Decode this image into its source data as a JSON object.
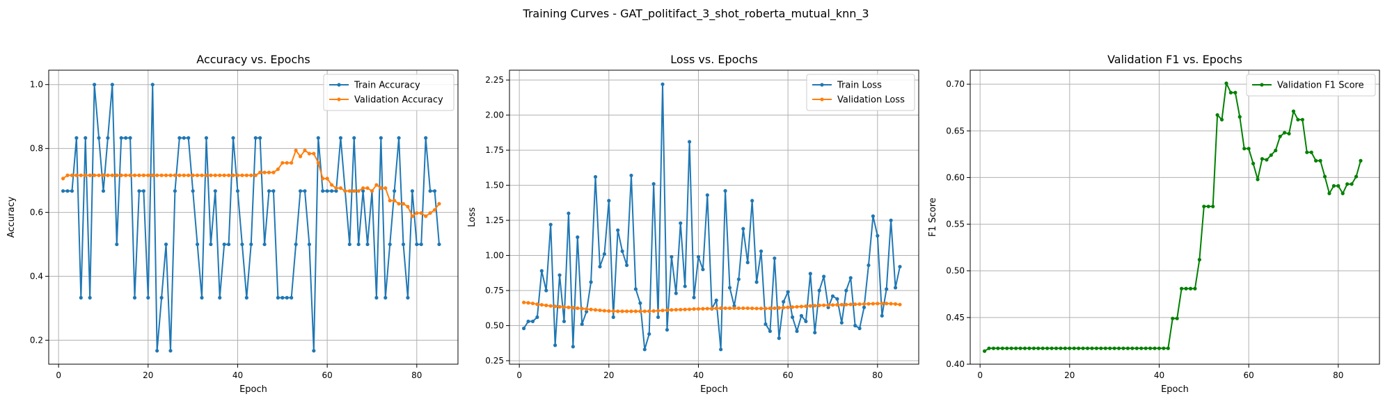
{
  "figure": {
    "title": "Training Curves - GAT_politifact_3_shot_roberta_mutual_knn_3"
  },
  "colors": {
    "blue": "#1f77b4",
    "orange": "#ff7f0e",
    "green": "#008000"
  },
  "chart_data": [
    {
      "type": "line",
      "title": "Accuracy vs. Epochs",
      "xlabel": "Epoch",
      "ylabel": "Accuracy",
      "xlim": [
        -2.2,
        89.2
      ],
      "ylim": [
        0.125,
        1.045
      ],
      "xticks": [
        0,
        20,
        40,
        60,
        80
      ],
      "yticks": [
        0.2,
        0.4,
        0.6,
        0.8,
        1.0
      ],
      "grid": true,
      "legend": "top-right",
      "series": [
        {
          "name": "Train Accuracy",
          "color": "blue",
          "x": [
            1,
            2,
            3,
            4,
            5,
            6,
            7,
            8,
            9,
            10,
            11,
            12,
            13,
            14,
            15,
            16,
            17,
            18,
            19,
            20,
            21,
            22,
            23,
            24,
            25,
            26,
            27,
            28,
            29,
            30,
            31,
            32,
            33,
            34,
            35,
            36,
            37,
            38,
            39,
            40,
            41,
            42,
            43,
            44,
            45,
            46,
            47,
            48,
            49,
            50,
            51,
            52,
            53,
            54,
            55,
            56,
            57,
            58,
            59,
            60,
            61,
            62,
            63,
            64,
            65,
            66,
            67,
            68,
            69,
            70,
            71,
            72,
            73,
            74,
            75,
            76,
            77,
            78,
            79,
            80,
            81,
            82,
            83,
            84,
            85
          ],
          "y": [
            0.667,
            0.667,
            0.667,
            0.833,
            0.333,
            0.833,
            0.333,
            1.0,
            0.833,
            0.667,
            0.833,
            1.0,
            0.5,
            0.833,
            0.833,
            0.833,
            0.333,
            0.667,
            0.667,
            0.333,
            1.0,
            0.167,
            0.333,
            0.5,
            0.167,
            0.667,
            0.833,
            0.833,
            0.833,
            0.667,
            0.5,
            0.333,
            0.833,
            0.5,
            0.667,
            0.333,
            0.5,
            0.5,
            0.833,
            0.667,
            0.5,
            0.333,
            0.5,
            0.833,
            0.833,
            0.5,
            0.667,
            0.667,
            0.333,
            0.333,
            0.333,
            0.333,
            0.5,
            0.667,
            0.667,
            0.5,
            0.167,
            0.833,
            0.667,
            0.667,
            0.667,
            0.667,
            0.833,
            0.667,
            0.5,
            0.833,
            0.5,
            0.667,
            0.5,
            0.667,
            0.333,
            0.833,
            0.333,
            0.5,
            0.667,
            0.833,
            0.5,
            0.333,
            0.667,
            0.5,
            0.5,
            0.833,
            0.667,
            0.667,
            0.5
          ]
        },
        {
          "name": "Validation Accuracy",
          "color": "orange",
          "x": [
            1,
            2,
            3,
            4,
            5,
            6,
            7,
            8,
            9,
            10,
            11,
            12,
            13,
            14,
            15,
            16,
            17,
            18,
            19,
            20,
            21,
            22,
            23,
            24,
            25,
            26,
            27,
            28,
            29,
            30,
            31,
            32,
            33,
            34,
            35,
            36,
            37,
            38,
            39,
            40,
            41,
            42,
            43,
            44,
            45,
            46,
            47,
            48,
            49,
            50,
            51,
            52,
            53,
            54,
            55,
            56,
            57,
            58,
            59,
            60,
            61,
            62,
            63,
            64,
            65,
            66,
            67,
            68,
            69,
            70,
            71,
            72,
            73,
            74,
            75,
            76,
            77,
            78,
            79,
            80,
            81,
            82,
            83,
            84,
            85
          ],
          "y": [
            0.706,
            0.716,
            0.716,
            0.716,
            0.716,
            0.716,
            0.716,
            0.716,
            0.716,
            0.716,
            0.716,
            0.716,
            0.716,
            0.716,
            0.716,
            0.716,
            0.716,
            0.716,
            0.716,
            0.716,
            0.716,
            0.716,
            0.716,
            0.716,
            0.716,
            0.716,
            0.716,
            0.716,
            0.716,
            0.716,
            0.716,
            0.716,
            0.716,
            0.716,
            0.716,
            0.716,
            0.716,
            0.716,
            0.716,
            0.716,
            0.716,
            0.716,
            0.716,
            0.716,
            0.725,
            0.725,
            0.725,
            0.725,
            0.735,
            0.755,
            0.755,
            0.755,
            0.794,
            0.775,
            0.794,
            0.784,
            0.784,
            0.755,
            0.706,
            0.706,
            0.686,
            0.676,
            0.676,
            0.667,
            0.667,
            0.667,
            0.667,
            0.676,
            0.676,
            0.667,
            0.686,
            0.676,
            0.676,
            0.637,
            0.637,
            0.627,
            0.627,
            0.618,
            0.588,
            0.598,
            0.598,
            0.588,
            0.598,
            0.608,
            0.627
          ]
        }
      ]
    },
    {
      "type": "line",
      "title": "Loss vs. Epochs",
      "xlabel": "Epoch",
      "ylabel": "Loss",
      "xlim": [
        -2.2,
        89.2
      ],
      "ylim": [
        0.225,
        2.32
      ],
      "xticks": [
        0,
        20,
        40,
        60,
        80
      ],
      "yticks": [
        0.25,
        0.5,
        0.75,
        1.0,
        1.25,
        1.5,
        1.75,
        2.0,
        2.25
      ],
      "grid": true,
      "legend": "top-right",
      "series": [
        {
          "name": "Train Loss",
          "color": "blue",
          "x": [
            1,
            2,
            3,
            4,
            5,
            6,
            7,
            8,
            9,
            10,
            11,
            12,
            13,
            14,
            15,
            16,
            17,
            18,
            19,
            20,
            21,
            22,
            23,
            24,
            25,
            26,
            27,
            28,
            29,
            30,
            31,
            32,
            33,
            34,
            35,
            36,
            37,
            38,
            39,
            40,
            41,
            42,
            43,
            44,
            45,
            46,
            47,
            48,
            49,
            50,
            51,
            52,
            53,
            54,
            55,
            56,
            57,
            58,
            59,
            60,
            61,
            62,
            63,
            64,
            65,
            66,
            67,
            68,
            69,
            70,
            71,
            72,
            73,
            74,
            75,
            76,
            77,
            78,
            79,
            80,
            81,
            82,
            83,
            84,
            85
          ],
          "y": [
            0.48,
            0.53,
            0.53,
            0.56,
            0.89,
            0.75,
            1.22,
            0.36,
            0.86,
            0.53,
            1.3,
            0.35,
            1.13,
            0.51,
            0.6,
            0.81,
            1.56,
            0.92,
            1.01,
            1.39,
            0.56,
            1.18,
            1.03,
            0.93,
            1.57,
            0.76,
            0.66,
            0.33,
            0.44,
            1.51,
            0.56,
            2.22,
            0.47,
            0.99,
            0.73,
            1.23,
            0.78,
            1.81,
            0.7,
            0.99,
            0.9,
            1.43,
            0.62,
            0.68,
            0.33,
            1.46,
            0.77,
            0.64,
            0.83,
            1.19,
            0.95,
            1.39,
            0.81,
            1.03,
            0.51,
            0.46,
            0.98,
            0.41,
            0.67,
            0.74,
            0.56,
            0.46,
            0.57,
            0.53,
            0.87,
            0.45,
            0.75,
            0.85,
            0.63,
            0.71,
            0.69,
            0.52,
            0.75,
            0.84,
            0.5,
            0.48,
            0.63,
            0.93,
            1.28,
            1.14,
            0.57,
            0.76,
            1.25,
            0.77,
            0.92
          ]
        },
        {
          "name": "Validation Loss",
          "color": "orange",
          "x": [
            1,
            2,
            3,
            4,
            5,
            6,
            7,
            8,
            9,
            10,
            11,
            12,
            13,
            14,
            15,
            16,
            17,
            18,
            19,
            20,
            21,
            22,
            23,
            24,
            25,
            26,
            27,
            28,
            29,
            30,
            31,
            32,
            33,
            34,
            35,
            36,
            37,
            38,
            39,
            40,
            41,
            42,
            43,
            44,
            45,
            46,
            47,
            48,
            49,
            50,
            51,
            52,
            53,
            54,
            55,
            56,
            57,
            58,
            59,
            60,
            61,
            62,
            63,
            64,
            65,
            66,
            67,
            68,
            69,
            70,
            71,
            72,
            73,
            74,
            75,
            76,
            77,
            78,
            79,
            80,
            81,
            82,
            83,
            84,
            85
          ],
          "y": [
            0.665,
            0.662,
            0.658,
            0.652,
            0.648,
            0.644,
            0.64,
            0.637,
            0.634,
            0.632,
            0.63,
            0.627,
            0.624,
            0.621,
            0.618,
            0.615,
            0.612,
            0.609,
            0.606,
            0.604,
            0.603,
            0.602,
            0.602,
            0.602,
            0.602,
            0.602,
            0.602,
            0.602,
            0.603,
            0.604,
            0.606,
            0.608,
            0.61,
            0.612,
            0.613,
            0.614,
            0.615,
            0.616,
            0.618,
            0.619,
            0.62,
            0.621,
            0.622,
            0.623,
            0.624,
            0.624,
            0.624,
            0.624,
            0.624,
            0.624,
            0.624,
            0.623,
            0.622,
            0.622,
            0.622,
            0.623,
            0.624,
            0.626,
            0.628,
            0.63,
            0.632,
            0.634,
            0.636,
            0.638,
            0.64,
            0.642,
            0.644,
            0.645,
            0.646,
            0.647,
            0.648,
            0.649,
            0.65,
            0.651,
            0.652,
            0.653,
            0.654,
            0.655,
            0.656,
            0.657,
            0.657,
            0.657,
            0.656,
            0.654,
            0.65
          ]
        }
      ]
    },
    {
      "type": "line",
      "title": "Validation F1 vs. Epochs",
      "xlabel": "Epoch",
      "ylabel": "F1 Score",
      "xlim": [
        -2.2,
        89.2
      ],
      "ylim": [
        0.4,
        0.715
      ],
      "xticks": [
        0,
        20,
        40,
        60,
        80
      ],
      "yticks": [
        0.4,
        0.45,
        0.5,
        0.55,
        0.6,
        0.65,
        0.7
      ],
      "grid": true,
      "legend": "top-right",
      "series": [
        {
          "name": "Validation F1 Score",
          "color": "green",
          "x": [
            1,
            2,
            3,
            4,
            5,
            6,
            7,
            8,
            9,
            10,
            11,
            12,
            13,
            14,
            15,
            16,
            17,
            18,
            19,
            20,
            21,
            22,
            23,
            24,
            25,
            26,
            27,
            28,
            29,
            30,
            31,
            32,
            33,
            34,
            35,
            36,
            37,
            38,
            39,
            40,
            41,
            42,
            43,
            44,
            45,
            46,
            47,
            48,
            49,
            50,
            51,
            52,
            53,
            54,
            55,
            56,
            57,
            58,
            59,
            60,
            61,
            62,
            63,
            64,
            65,
            66,
            67,
            68,
            69,
            70,
            71,
            72,
            73,
            74,
            75,
            76,
            77,
            78,
            79,
            80,
            81,
            82,
            83,
            84,
            85
          ],
          "y": [
            0.414,
            0.417,
            0.417,
            0.417,
            0.417,
            0.417,
            0.417,
            0.417,
            0.417,
            0.417,
            0.417,
            0.417,
            0.417,
            0.417,
            0.417,
            0.417,
            0.417,
            0.417,
            0.417,
            0.417,
            0.417,
            0.417,
            0.417,
            0.417,
            0.417,
            0.417,
            0.417,
            0.417,
            0.417,
            0.417,
            0.417,
            0.417,
            0.417,
            0.417,
            0.417,
            0.417,
            0.417,
            0.417,
            0.417,
            0.417,
            0.417,
            0.417,
            0.449,
            0.449,
            0.481,
            0.481,
            0.481,
            0.481,
            0.512,
            0.569,
            0.569,
            0.569,
            0.667,
            0.662,
            0.701,
            0.691,
            0.691,
            0.665,
            0.631,
            0.631,
            0.615,
            0.598,
            0.62,
            0.619,
            0.624,
            0.629,
            0.644,
            0.648,
            0.647,
            0.671,
            0.662,
            0.662,
            0.627,
            0.627,
            0.618,
            0.618,
            0.601,
            0.583,
            0.591,
            0.591,
            0.583,
            0.593,
            0.593,
            0.601,
            0.618
          ]
        }
      ]
    }
  ]
}
